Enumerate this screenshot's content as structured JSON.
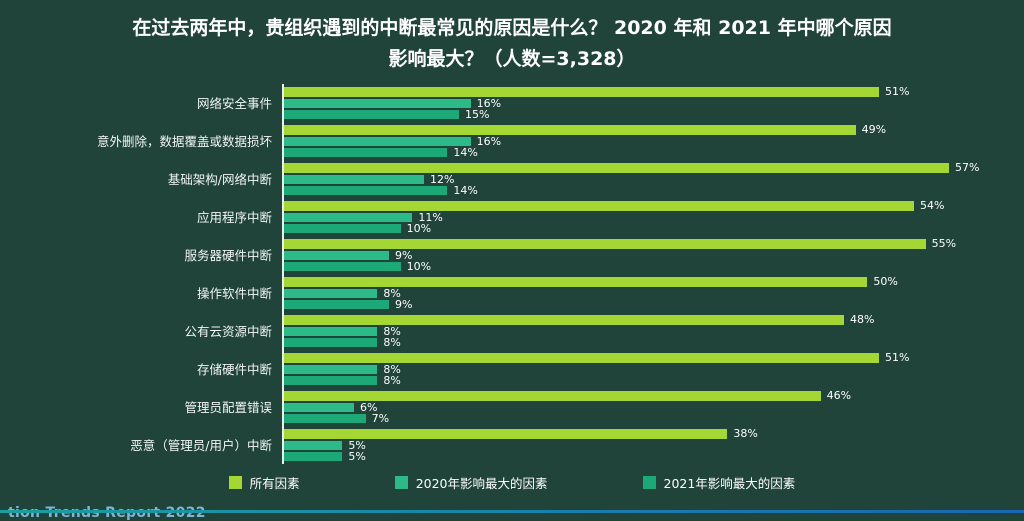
{
  "title": {
    "line1": "在过去两年中，贵组织遇到的中断最常见的原因是什么？ 2020 年和 2021 年中哪个原因",
    "line2": "影响最大？（人数=3,328）"
  },
  "chart_data": {
    "type": "bar",
    "orientation": "horizontal",
    "title": "在过去两年中，贵组织遇到的中断最常见的原因是什么？ 2020 年和 2021 年中哪个原因影响最大？（人数=3,328）",
    "categories": [
      "网络安全事件",
      "意外删除，数据覆盖或数据损坏",
      "基础架构/网络中断",
      "应用程序中断",
      "服务器硬件中断",
      "操作软件中断",
      "公有云资源中断",
      "存储硬件中断",
      "管理员配置错误",
      "恶意（管理员/用户）中断"
    ],
    "series": [
      {
        "name": "所有因素",
        "color": "#a4d634",
        "values": [
          51,
          49,
          57,
          54,
          55,
          50,
          48,
          51,
          46,
          38
        ]
      },
      {
        "name": "2020年影响最大的因素",
        "color": "#2cba89",
        "values": [
          16,
          16,
          12,
          11,
          9,
          8,
          8,
          8,
          6,
          5
        ]
      },
      {
        "name": "2021年影响最大的因素",
        "color": "#1da878",
        "values": [
          15,
          14,
          14,
          10,
          10,
          9,
          8,
          8,
          7,
          5
        ]
      }
    ],
    "value_suffix": "%",
    "xlim": [
      0,
      60
    ],
    "grid": false,
    "legend_position": "bottom"
  },
  "watermark": "tion Trends Report 2022",
  "colors": {
    "background": "#20433a",
    "axis": "#e9f1ed",
    "text": "#ffffff"
  }
}
